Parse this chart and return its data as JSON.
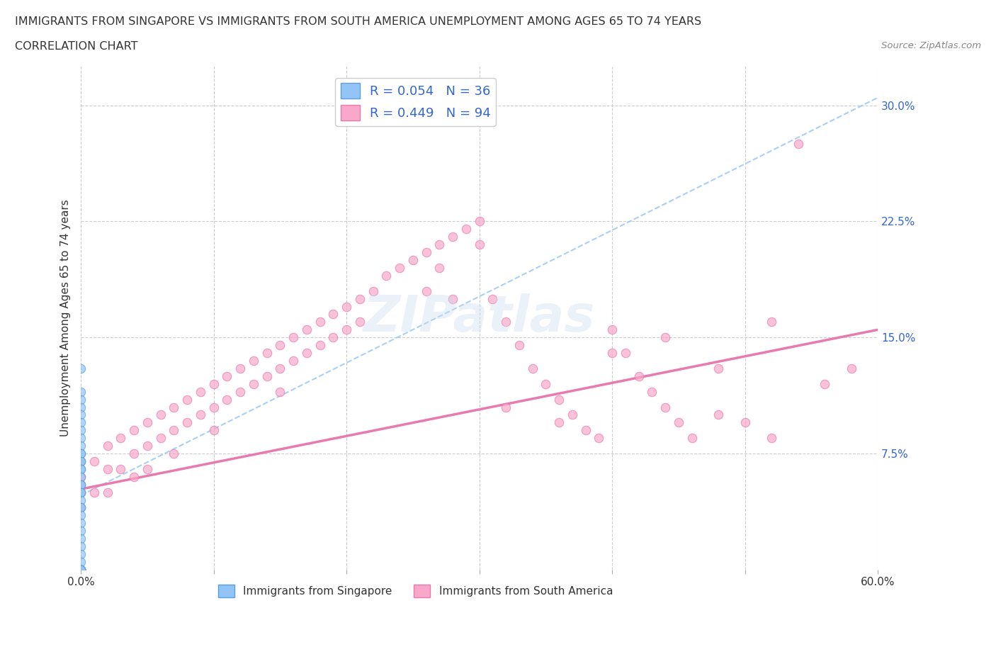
{
  "title_line1": "IMMIGRANTS FROM SINGAPORE VS IMMIGRANTS FROM SOUTH AMERICA UNEMPLOYMENT AMONG AGES 65 TO 74 YEARS",
  "title_line2": "CORRELATION CHART",
  "source_text": "Source: ZipAtlas.com",
  "ylabel": "Unemployment Among Ages 65 to 74 years",
  "xlim": [
    0.0,
    0.6
  ],
  "ylim": [
    0.0,
    0.325
  ],
  "xticks": [
    0.0,
    0.1,
    0.2,
    0.3,
    0.4,
    0.5,
    0.6
  ],
  "xticklabels": [
    "0.0%",
    "",
    "",
    "",
    "",
    "",
    "60.0%"
  ],
  "ytick_positions": [
    0.075,
    0.15,
    0.225,
    0.3
  ],
  "yticklabels": [
    "7.5%",
    "15.0%",
    "22.5%",
    "30.0%"
  ],
  "singapore_color": "#92C5F5",
  "singapore_edge": "#5A9FE0",
  "south_america_color": "#F9A8C9",
  "south_america_edge": "#E87AB0",
  "singapore_R": 0.054,
  "singapore_N": 36,
  "south_america_R": 0.449,
  "south_america_N": 94,
  "legend_R_color": "#3366CC",
  "watermark": "ZIPatlas",
  "singapore_x": [
    0.0,
    0.0,
    0.0,
    0.0,
    0.0,
    0.0,
    0.0,
    0.0,
    0.0,
    0.0,
    0.0,
    0.0,
    0.0,
    0.0,
    0.0,
    0.0,
    0.0,
    0.0,
    0.0,
    0.0,
    0.0,
    0.0,
    0.0,
    0.0,
    0.0,
    0.0,
    0.0,
    0.0,
    0.0,
    0.0,
    0.0,
    0.0,
    0.0,
    0.0,
    0.0,
    0.0
  ],
  "singapore_y": [
    0.13,
    0.115,
    0.11,
    0.105,
    0.1,
    0.095,
    0.09,
    0.085,
    0.08,
    0.075,
    0.075,
    0.07,
    0.07,
    0.065,
    0.065,
    0.06,
    0.055,
    0.055,
    0.05,
    0.05,
    0.045,
    0.04,
    0.04,
    0.035,
    0.03,
    0.025,
    0.02,
    0.015,
    0.01,
    0.005,
    0.0,
    0.0,
    0.0,
    0.0,
    0.0,
    0.0
  ],
  "south_america_x": [
    0.0,
    0.0,
    0.0,
    0.0,
    0.0,
    0.01,
    0.01,
    0.02,
    0.02,
    0.02,
    0.03,
    0.03,
    0.04,
    0.04,
    0.04,
    0.05,
    0.05,
    0.05,
    0.06,
    0.06,
    0.07,
    0.07,
    0.07,
    0.08,
    0.08,
    0.09,
    0.09,
    0.1,
    0.1,
    0.1,
    0.11,
    0.11,
    0.12,
    0.12,
    0.13,
    0.13,
    0.14,
    0.14,
    0.15,
    0.15,
    0.15,
    0.16,
    0.16,
    0.17,
    0.17,
    0.18,
    0.18,
    0.19,
    0.19,
    0.2,
    0.2,
    0.21,
    0.21,
    0.22,
    0.23,
    0.24,
    0.25,
    0.26,
    0.27,
    0.27,
    0.28,
    0.29,
    0.3,
    0.3,
    0.31,
    0.32,
    0.33,
    0.34,
    0.35,
    0.36,
    0.37,
    0.38,
    0.39,
    0.4,
    0.41,
    0.42,
    0.43,
    0.44,
    0.45,
    0.46,
    0.48,
    0.5,
    0.52,
    0.54,
    0.56,
    0.58,
    0.4,
    0.44,
    0.48,
    0.52,
    0.32,
    0.36,
    0.28,
    0.26
  ],
  "south_america_y": [
    0.07,
    0.06,
    0.055,
    0.05,
    0.04,
    0.07,
    0.05,
    0.08,
    0.065,
    0.05,
    0.085,
    0.065,
    0.09,
    0.075,
    0.06,
    0.095,
    0.08,
    0.065,
    0.1,
    0.085,
    0.105,
    0.09,
    0.075,
    0.11,
    0.095,
    0.115,
    0.1,
    0.12,
    0.105,
    0.09,
    0.125,
    0.11,
    0.13,
    0.115,
    0.135,
    0.12,
    0.14,
    0.125,
    0.145,
    0.13,
    0.115,
    0.15,
    0.135,
    0.155,
    0.14,
    0.16,
    0.145,
    0.165,
    0.15,
    0.17,
    0.155,
    0.175,
    0.16,
    0.18,
    0.19,
    0.195,
    0.2,
    0.205,
    0.21,
    0.195,
    0.215,
    0.22,
    0.225,
    0.21,
    0.175,
    0.16,
    0.145,
    0.13,
    0.12,
    0.11,
    0.1,
    0.09,
    0.085,
    0.155,
    0.14,
    0.125,
    0.115,
    0.105,
    0.095,
    0.085,
    0.1,
    0.095,
    0.085,
    0.275,
    0.12,
    0.13,
    0.14,
    0.15,
    0.13,
    0.16,
    0.105,
    0.095,
    0.175,
    0.18
  ],
  "grid_color": "#CCCCCC",
  "background_color": "#FFFFFF",
  "diagonal_line_color": "#92C5F5",
  "sa_trend_color": "#E87AB0",
  "sg_trend_color": "#5A9FE0"
}
